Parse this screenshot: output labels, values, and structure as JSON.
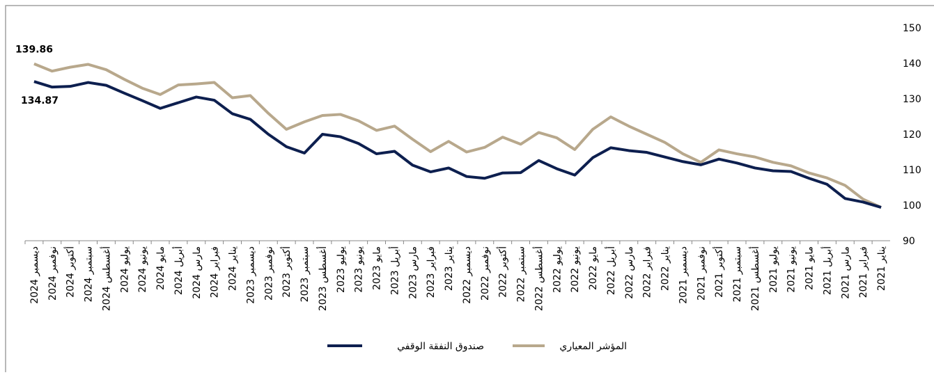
{
  "chart_data": {
    "type": "line",
    "categories": [
      "ديسمبر 2024",
      "نوفمبر 2024",
      "أكتوبر 2024",
      "سبتمبر 2024",
      "أغسطس 2024",
      "يوليو 2024",
      "يونيو 2024",
      "مايو 2024",
      "أبريل 2024",
      "مارس 2024",
      "فبراير 2024",
      "يناير 2024",
      "ديسمبر 2023",
      "نوفمبر 2023",
      "أكتوبر 2023",
      "سبتمبر 2023",
      "أغسطس 2023",
      "يوليو 2023",
      "يونيو 2023",
      "مايو 2023",
      "أبريل 2023",
      "مارس 2023",
      "فبراير 2023",
      "يناير 2023",
      "ديسمبر 2022",
      "نوفمبر 2022",
      "أكتوبر 2022",
      "سبتمبر 2022",
      "أغسطس 2022",
      "يوليو 2022",
      "يونيو 2022",
      "مايو 2022",
      "أبريل 2022",
      "مارس 2022",
      "فبراير 2022",
      "يناير 2022",
      "ديسمبر 2021",
      "نوفمبر 2021",
      "أكتوبر 2021",
      "سبتمبر 2021",
      "أغسطس 2021",
      "يوليو 2021",
      "يونيو 2021",
      "مايو 2021",
      "أبريل 2021",
      "مارس 2021",
      "فبراير 2021",
      "يناير 2021"
    ],
    "series": [
      {
        "name": "صندوق النفقة الوقفي",
        "color": "#0d1f4f",
        "values": [
          134.87,
          133.3,
          133.5,
          134.6,
          133.8,
          131.6,
          129.5,
          127.3,
          128.9,
          130.5,
          129.6,
          125.8,
          124.2,
          120.0,
          116.5,
          114.7,
          120.0,
          119.3,
          117.4,
          114.5,
          115.2,
          111.3,
          109.4,
          110.5,
          108.1,
          107.6,
          109.1,
          109.2,
          112.6,
          110.3,
          108.5,
          113.4,
          116.2,
          115.4,
          114.9,
          113.6,
          112.3,
          111.4,
          113.0,
          111.9,
          110.5,
          109.7,
          109.5,
          107.6,
          105.9,
          101.9,
          100.9,
          99.4
        ]
      },
      {
        "name": "المؤشر المعياري",
        "color": "#b8a88c",
        "values": [
          139.86,
          137.8,
          138.9,
          139.7,
          138.2,
          135.5,
          133.0,
          131.2,
          133.9,
          134.2,
          134.6,
          130.3,
          130.9,
          125.9,
          121.4,
          123.5,
          125.3,
          125.6,
          123.8,
          121.1,
          122.3,
          118.6,
          115.1,
          118.0,
          115.0,
          116.3,
          119.2,
          117.2,
          120.5,
          119.0,
          115.7,
          121.4,
          124.9,
          122.3,
          120.0,
          117.7,
          114.5,
          112.1,
          115.6,
          114.5,
          113.6,
          112.1,
          111.1,
          109.1,
          107.7,
          105.6,
          101.7,
          99.4
        ]
      }
    ],
    "ylim": [
      90,
      150
    ],
    "yticks": [
      90,
      100,
      110,
      120,
      130,
      140,
      150
    ]
  }
}
